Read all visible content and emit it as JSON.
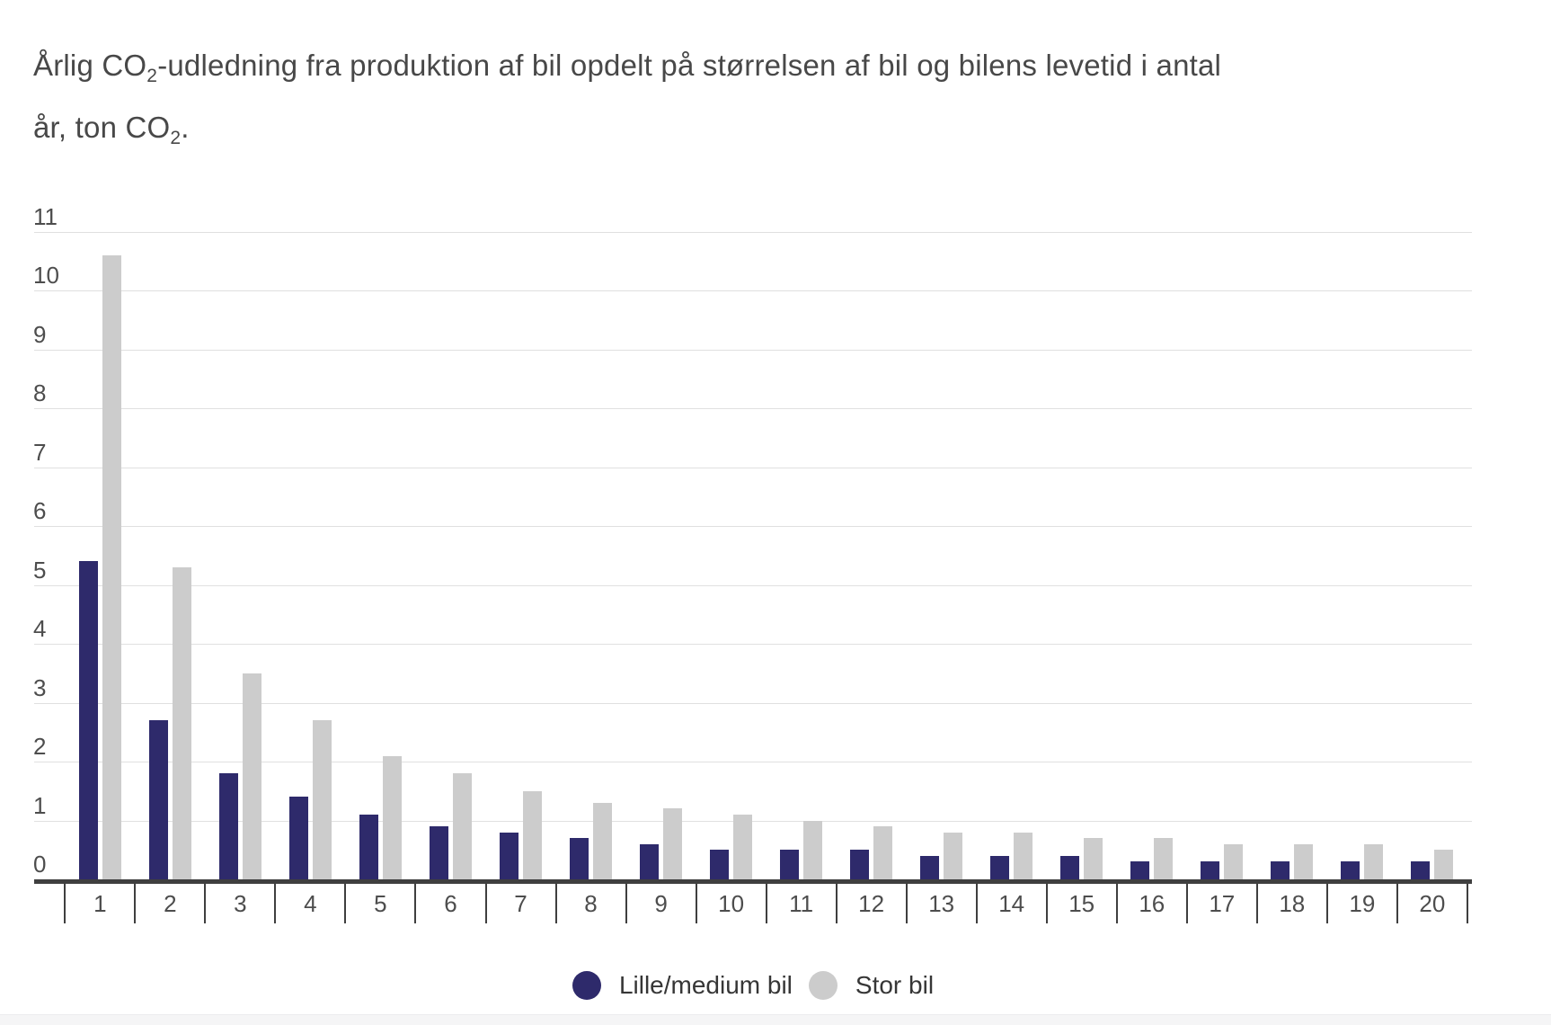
{
  "title": {
    "line1": {
      "pre": "Årlig CO",
      "sub": "2",
      "post": "-udledning fra produktion af bil opdelt på størrelsen af bil og bilens levetid i antal"
    },
    "line2": {
      "pre": "år, ton CO",
      "sub": "2",
      "post": "."
    }
  },
  "chart_data": {
    "type": "bar",
    "title": "Årlig CO2-udledning fra produktion af bil opdelt på størrelsen af bil og bilens levetid i antal år, ton CO2.",
    "categories": [
      1,
      2,
      3,
      4,
      5,
      6,
      7,
      8,
      9,
      10,
      11,
      12,
      13,
      14,
      15,
      16,
      17,
      18,
      19,
      20
    ],
    "series": [
      {
        "name": "Lille/medium bil",
        "color": "#2e2a6b",
        "values": [
          5.4,
          2.7,
          1.8,
          1.4,
          1.1,
          0.9,
          0.8,
          0.7,
          0.6,
          0.5,
          0.5,
          0.5,
          0.4,
          0.4,
          0.4,
          0.3,
          0.3,
          0.3,
          0.3,
          0.3
        ]
      },
      {
        "name": "Stor bil",
        "color": "#cccccc",
        "values": [
          10.6,
          5.3,
          3.5,
          2.7,
          2.1,
          1.8,
          1.5,
          1.3,
          1.2,
          1.1,
          1.0,
          0.9,
          0.8,
          0.8,
          0.7,
          0.7,
          0.6,
          0.6,
          0.6,
          0.5
        ]
      }
    ],
    "xlabel": "",
    "ylabel": "",
    "ylim": [
      0,
      11
    ],
    "yticks": [
      0,
      1,
      2,
      3,
      4,
      5,
      6,
      7,
      8,
      9,
      10,
      11
    ],
    "grid": true,
    "legend_position": "bottom"
  },
  "legend": {
    "items": [
      {
        "label": "Lille/medium bil",
        "color": "#2e2a6b"
      },
      {
        "label": "Stor bil",
        "color": "#cccccc"
      }
    ]
  },
  "colors": {
    "background": "#ffffff",
    "series_small": "#2e2a6b",
    "series_large": "#cccccc",
    "gridline": "#e0e0e0",
    "axis": "#3f3f3f",
    "tick_label": "#4d4d4d",
    "title_text": "#484848",
    "legend_text": "#363636"
  }
}
